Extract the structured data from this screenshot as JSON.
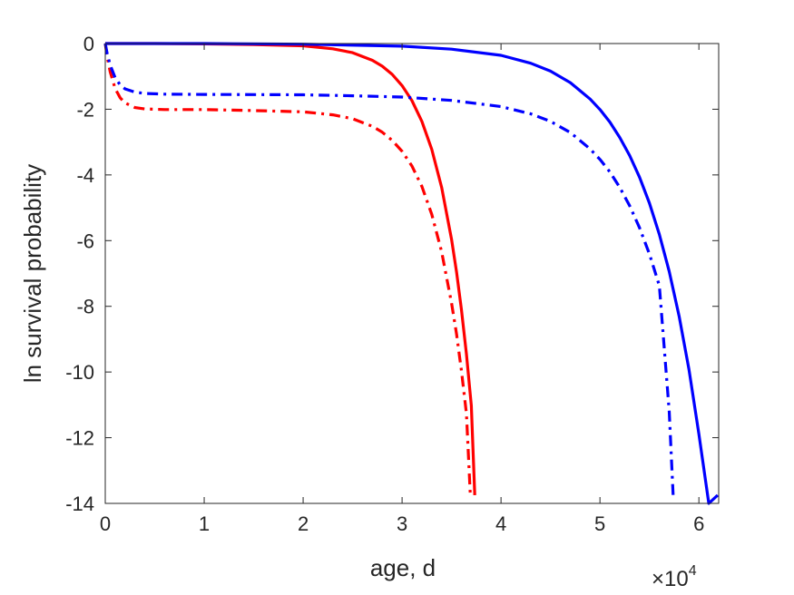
{
  "chart_data": {
    "type": "line",
    "xlabel": "age, d",
    "ylabel": "ln survival probability",
    "x_multiplier": "×10",
    "x_multiplier_exponent": "4",
    "xlim": [
      0,
      62000
    ],
    "ylim": [
      -14,
      0
    ],
    "x_tick_values": [
      0,
      10000,
      20000,
      30000,
      40000,
      50000,
      60000
    ],
    "x_tick_labels": [
      "0",
      "1",
      "2",
      "3",
      "4",
      "5",
      "6"
    ],
    "y_tick_values": [
      0,
      -2,
      -4,
      -6,
      -8,
      -10,
      -12,
      -14
    ],
    "y_tick_labels": [
      "0",
      "-2",
      "-4",
      "-6",
      "-8",
      "-10",
      "-12",
      "-14"
    ],
    "grid": false,
    "box": true,
    "series": [
      {
        "color": "#ff0000",
        "style": "solid",
        "x": [
          0,
          5000,
          10000,
          15000,
          20000,
          23000,
          25000,
          27000,
          28000,
          29000,
          30000,
          31000,
          32000,
          33000,
          34000,
          35000,
          35500,
          36000,
          36500,
          37000,
          37350
        ],
        "y": [
          0,
          0,
          -0.01,
          -0.03,
          -0.07,
          -0.16,
          -0.28,
          -0.51,
          -0.69,
          -0.94,
          -1.28,
          -1.74,
          -2.37,
          -3.22,
          -4.38,
          -5.96,
          -6.95,
          -8.1,
          -9.45,
          -11.02,
          -13.75
        ]
      },
      {
        "color": "#ff0000",
        "style": "dashdot",
        "x": [
          0,
          200,
          500,
          1000,
          1500,
          2000,
          3000,
          4000,
          6000,
          10000,
          15000,
          20000,
          23000,
          25000,
          27000,
          28000,
          29000,
          30000,
          31000,
          32000,
          33000,
          34000,
          35000,
          35500,
          36000,
          36500,
          36900
        ],
        "y": [
          0,
          -0.42,
          -0.87,
          -1.37,
          -1.65,
          -1.81,
          -1.95,
          -1.99,
          -2.01,
          -2.01,
          -2.04,
          -2.08,
          -2.17,
          -2.29,
          -2.52,
          -2.7,
          -2.95,
          -3.28,
          -3.73,
          -4.35,
          -5.2,
          -6.34,
          -7.9,
          -8.84,
          -9.96,
          -11.26,
          -13.75
        ]
      },
      {
        "color": "#0000ff",
        "style": "solid",
        "x": [
          0,
          10000,
          20000,
          30000,
          35000,
          40000,
          43000,
          45000,
          47000,
          49000,
          50000,
          51000,
          52000,
          53000,
          54000,
          55000,
          56000,
          57000,
          58000,
          59000,
          60000,
          61000,
          61900
        ],
        "y": [
          0,
          0,
          -0.02,
          -0.08,
          -0.17,
          -0.36,
          -0.6,
          -0.84,
          -1.19,
          -1.69,
          -2.01,
          -2.39,
          -2.86,
          -3.41,
          -4.07,
          -4.86,
          -5.81,
          -6.94,
          -8.3,
          -9.93,
          -11.89,
          -14.0,
          -13.75
        ]
      },
      {
        "color": "#0000ff",
        "style": "dashdot",
        "x": [
          0,
          200,
          500,
          1000,
          1500,
          2000,
          3000,
          4000,
          6000,
          10000,
          20000,
          25000,
          30000,
          35000,
          40000,
          43000,
          45000,
          47000,
          49000,
          50000,
          51000,
          52000,
          53000,
          54000,
          55000,
          56000,
          57000,
          57400
        ],
        "y": [
          0,
          -0.32,
          -0.66,
          -1.04,
          -1.26,
          -1.38,
          -1.48,
          -1.52,
          -1.54,
          -1.55,
          -1.56,
          -1.59,
          -1.63,
          -1.73,
          -1.92,
          -2.14,
          -2.37,
          -2.71,
          -3.21,
          -3.53,
          -3.91,
          -4.38,
          -4.94,
          -5.61,
          -6.41,
          -7.37,
          -11.2,
          -13.75
        ]
      }
    ]
  }
}
